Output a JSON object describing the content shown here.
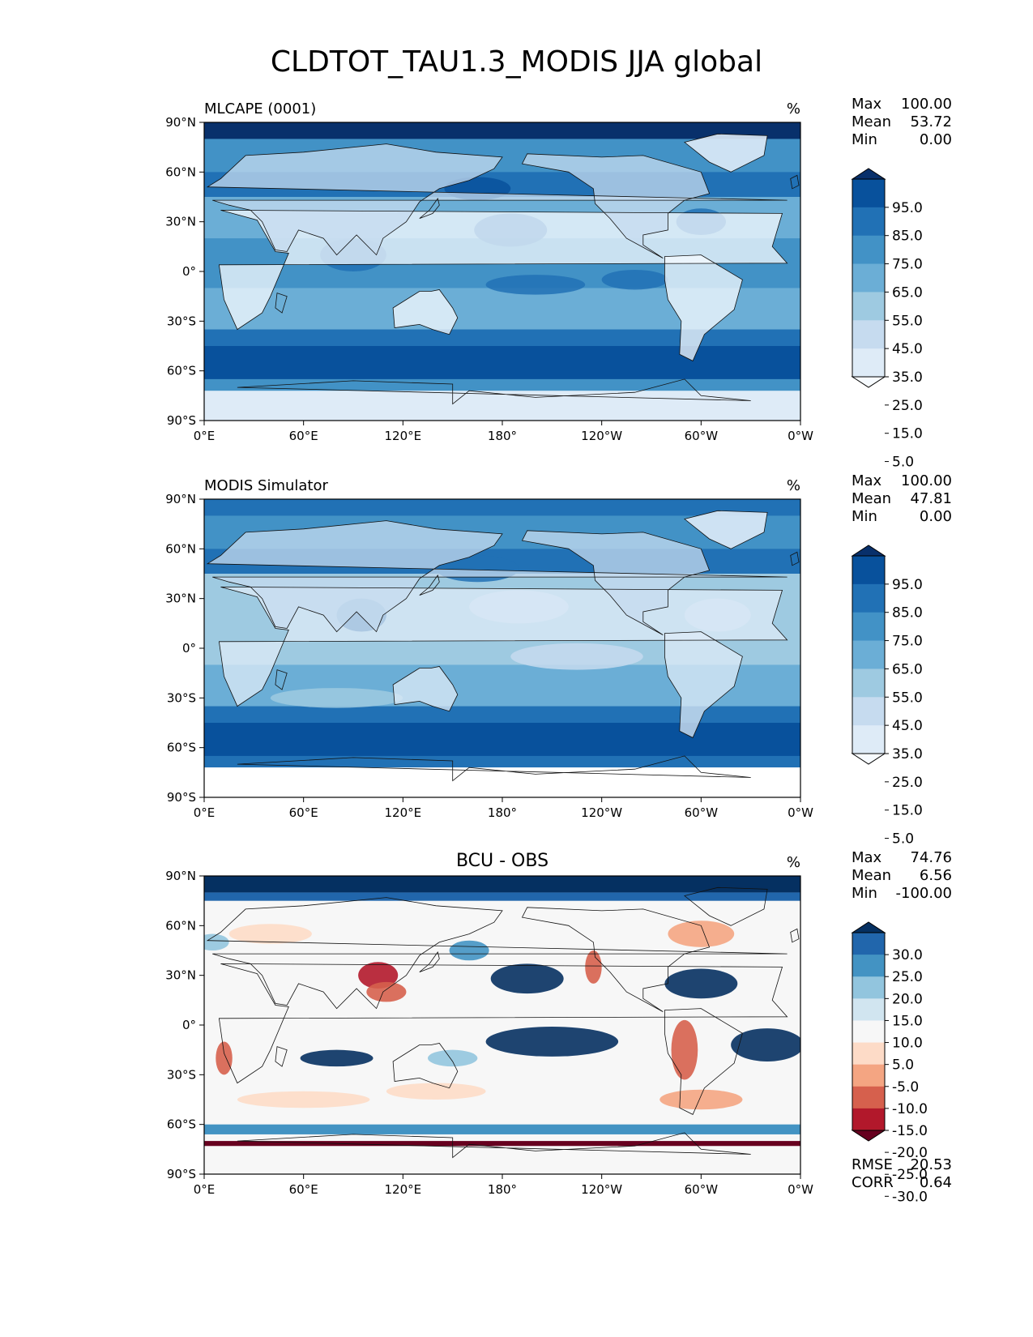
{
  "title": "CLDTOT_TAU1.3_MODIS JJA global",
  "colors": {
    "seq": [
      "#f7fbff",
      "#deebf7",
      "#c6dbef",
      "#9ecae1",
      "#6baed6",
      "#4292c6",
      "#2171b5",
      "#08519c",
      "#08306b"
    ],
    "diff": [
      "#67001f",
      "#b2182b",
      "#d6604d",
      "#f4a582",
      "#fddbc7",
      "#f7f7f7",
      "#d1e5f0",
      "#92c5de",
      "#4393c3",
      "#2166ac",
      "#053061"
    ]
  },
  "chart_data": [
    {
      "type": "heatmap",
      "title": "MLCAPE (0001)",
      "title_position": "left",
      "units": "%",
      "stats": [
        {
          "label": "Max",
          "value": "100.00"
        },
        {
          "label": "Mean",
          "value": "53.72"
        },
        {
          "label": "Min",
          "value": "0.00"
        }
      ],
      "colorbar": {
        "levels": [
          "95.0",
          "85.0",
          "75.0",
          "65.0",
          "55.0",
          "45.0",
          "35.0",
          "25.0",
          "15.0",
          "5.0"
        ],
        "palette": "seq",
        "extend": "both"
      },
      "x_ticks": [
        "0°E",
        "60°E",
        "120°E",
        "180°",
        "120°W",
        "60°W",
        "0°W"
      ],
      "y_ticks": [
        "90°N",
        "60°N",
        "30°N",
        "0°",
        "30°S",
        "60°S",
        "90°S"
      ],
      "xlim": [
        0,
        360
      ],
      "ylim": [
        -90,
        90
      ]
    },
    {
      "type": "heatmap",
      "title": "MODIS Simulator",
      "title_position": "left",
      "units": "%",
      "stats": [
        {
          "label": "Max",
          "value": "100.00"
        },
        {
          "label": "Mean",
          "value": "47.81"
        },
        {
          "label": "Min",
          "value": "0.00"
        }
      ],
      "colorbar": {
        "levels": [
          "95.0",
          "85.0",
          "75.0",
          "65.0",
          "55.0",
          "45.0",
          "35.0",
          "25.0",
          "15.0",
          "5.0"
        ],
        "palette": "seq",
        "extend": "both"
      },
      "x_ticks": [
        "0°E",
        "60°E",
        "120°E",
        "180°",
        "120°W",
        "60°W",
        "0°W"
      ],
      "y_ticks": [
        "90°N",
        "60°N",
        "30°N",
        "0°",
        "30°S",
        "60°S",
        "90°S"
      ],
      "xlim": [
        0,
        360
      ],
      "ylim": [
        -90,
        90
      ]
    },
    {
      "type": "heatmap",
      "title": "BCU - OBS",
      "title_position": "center",
      "units": "%",
      "stats": [
        {
          "label": "Max",
          "value": "74.76"
        },
        {
          "label": "Mean",
          "value": "6.56"
        },
        {
          "label": "Min",
          "value": "-100.00"
        }
      ],
      "metrics": [
        {
          "label": "RMSE",
          "value": "20.53"
        },
        {
          "label": "CORR",
          "value": "0.64"
        }
      ],
      "colorbar": {
        "levels": [
          "30.0",
          "25.0",
          "20.0",
          "15.0",
          "10.0",
          "5.0",
          "-5.0",
          "-10.0",
          "-15.0",
          "-20.0",
          "-25.0",
          "-30.0"
        ],
        "palette": "diff",
        "extend": "both"
      },
      "x_ticks": [
        "0°E",
        "60°E",
        "120°E",
        "180°",
        "120°W",
        "60°W",
        "0°W"
      ],
      "y_ticks": [
        "90°N",
        "60°N",
        "30°N",
        "0°",
        "30°S",
        "60°S",
        "90°S"
      ],
      "xlim": [
        0,
        360
      ],
      "ylim": [
        -90,
        90
      ]
    }
  ]
}
